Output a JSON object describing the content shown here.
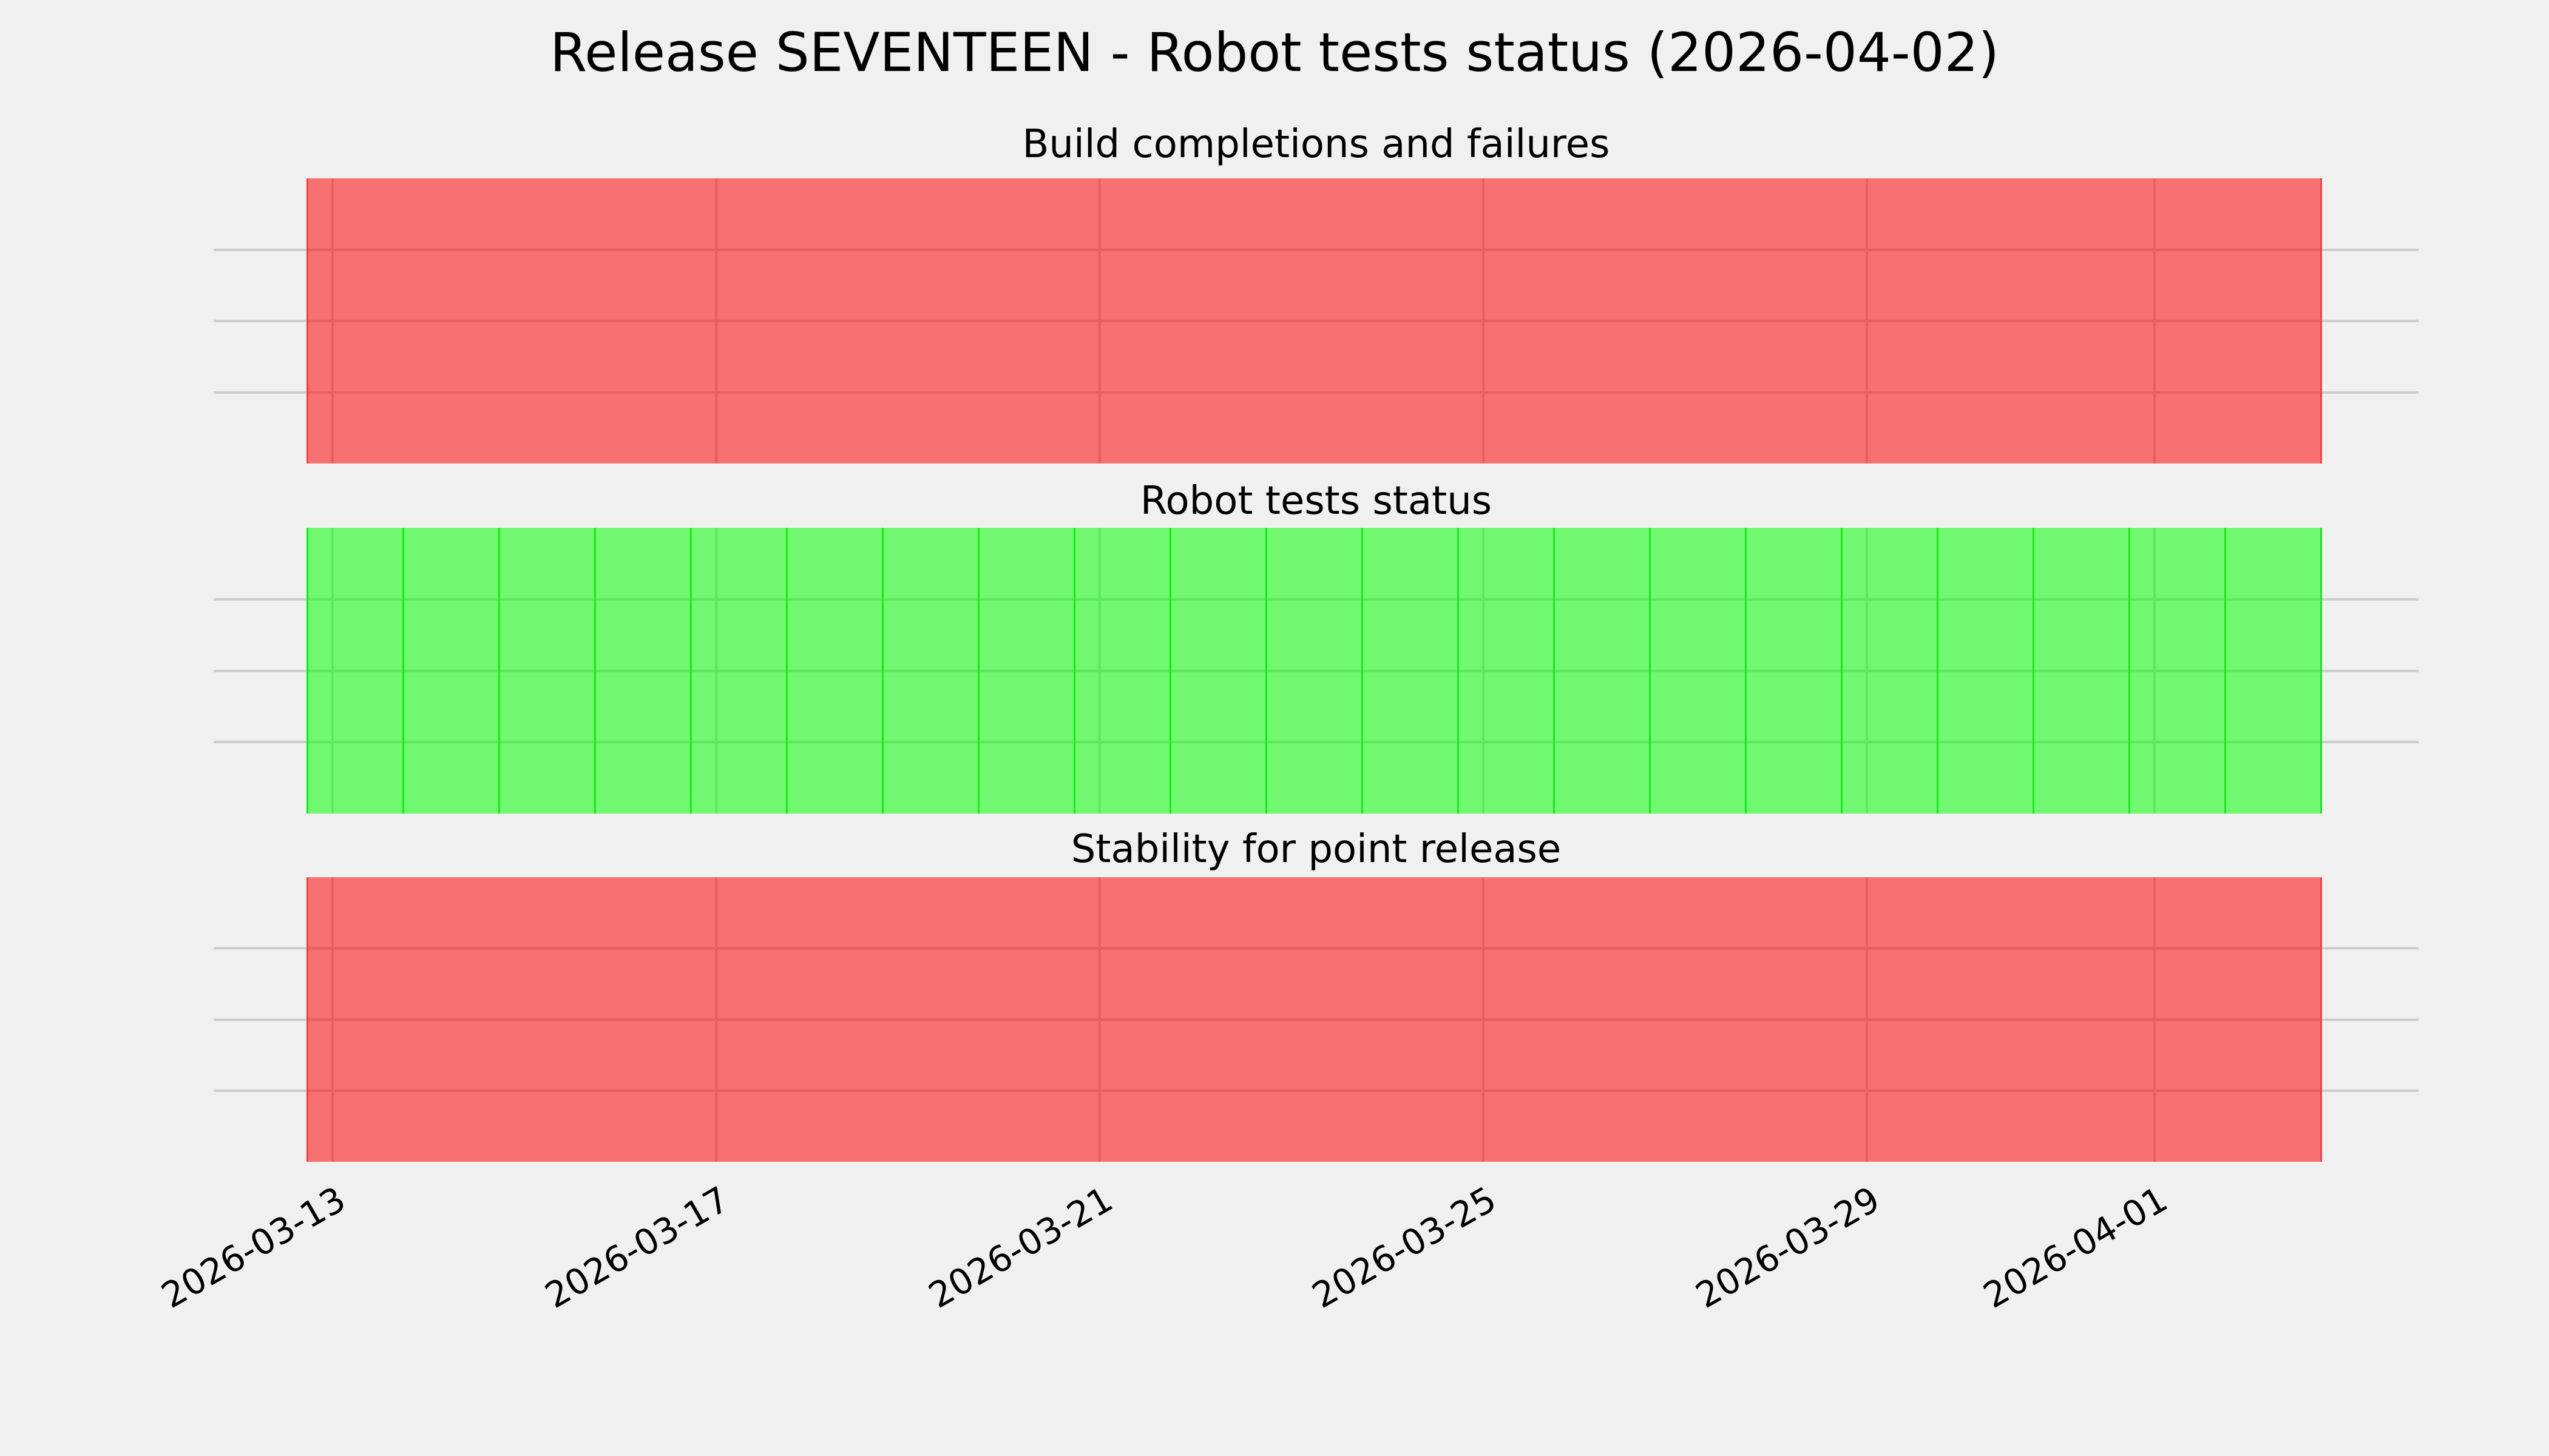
{
  "figure": {
    "background_color": "#f0f0f0",
    "grid_color": "#cdcdcd",
    "text_color": "#000000"
  },
  "chart_data": {
    "type": "area",
    "title": "Release SEVENTEEN - Robot tests status (2026-04-02)",
    "xlabel": "",
    "ylabel": "",
    "grid": true,
    "legend_visible": false,
    "y_tick_labels_visible": false,
    "x_range": [
      "2026-03-12",
      "2026-04-02"
    ],
    "days_shown": 21,
    "x_tick_labels": [
      "2026-03-13",
      "2026-03-17",
      "2026-03-21",
      "2026-03-25",
      "2026-03-29",
      "2026-04-01"
    ],
    "x_tick_rotation_deg": 30,
    "status_colors": {
      "failing_fill": "rgba(255,0,0,0.53)",
      "failing_edge": "#fa3d3d",
      "passing_fill": "rgba(0,255,0,0.53)",
      "passing_edge": "#12ee12"
    },
    "panels": [
      {
        "title": "Build completions and failures",
        "status": "failing",
        "series_description": "constant failing band across full date range",
        "x": [
          "2026-03-12",
          "2026-04-02"
        ],
        "y": [
          1,
          1
        ],
        "fill_rgba": "rgba(255,0,0,0.53)",
        "edge_color": "#fa3d3d",
        "daily_segments": false
      },
      {
        "title": "Robot tests status",
        "status": "passing",
        "series_description": "constant passing band across full date range with one segment per day",
        "x": [
          "2026-03-12",
          "2026-04-02"
        ],
        "y": [
          1,
          1
        ],
        "fill_rgba": "rgba(0,255,0,0.53)",
        "edge_color": "#12ee12",
        "daily_segments": true
      },
      {
        "title": "Stability for point release",
        "status": "failing",
        "series_description": "constant failing band across full date range",
        "x": [
          "2026-03-12",
          "2026-04-02"
        ],
        "y": [
          1,
          1
        ],
        "fill_rgba": "rgba(255,0,0,0.53)",
        "edge_color": "#fa3d3d",
        "daily_segments": false
      }
    ]
  }
}
